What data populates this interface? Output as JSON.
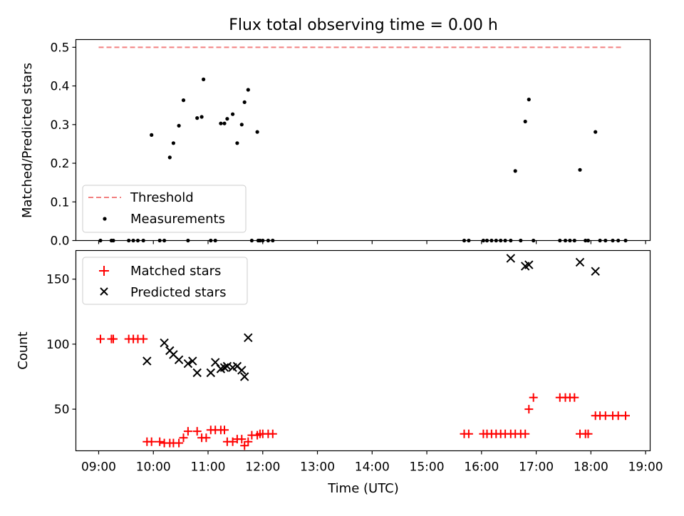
{
  "chart_data": [
    {
      "type": "scatter",
      "title": "Flux total observing time = 0.00 h",
      "xlabel": "",
      "ylabel": "Matched/Predicted stars",
      "xlim": [
        "08:35",
        "19:05"
      ],
      "ylim": [
        0,
        0.52
      ],
      "yticks": [
        "0.0",
        "0.1",
        "0.2",
        "0.3",
        "0.4",
        "0.5"
      ],
      "ytick_values": [
        0,
        0.1,
        0.2,
        0.3,
        0.4,
        0.5
      ],
      "legend": {
        "placement": "lower-left",
        "entries": [
          "Threshold",
          "Measurements"
        ]
      },
      "series": [
        {
          "name": "Threshold",
          "type": "line",
          "style": "dashed",
          "color": "#f28080",
          "x": [
            "09:00",
            "18:36"
          ],
          "y": [
            0.5,
            0.5
          ]
        },
        {
          "name": "Measurements",
          "type": "scatter",
          "color": "#000000",
          "x": [
            "09:02",
            "09:14",
            "09:16",
            "09:33",
            "09:38",
            "09:43",
            "09:49",
            "09:58",
            "10:07",
            "10:12",
            "10:18",
            "10:22",
            "10:28",
            "10:33",
            "10:38",
            "10:48",
            "10:53",
            "10:55",
            "11:03",
            "11:08",
            "11:14",
            "11:18",
            "11:21",
            "11:27",
            "11:32",
            "11:37",
            "11:40",
            "11:44",
            "11:48",
            "11:54",
            "11:55",
            "11:57",
            "12:00",
            "12:06",
            "12:11",
            "15:41",
            "15:46",
            "16:02",
            "16:06",
            "16:11",
            "16:16",
            "16:21",
            "16:26",
            "16:32",
            "16:37",
            "16:43",
            "16:48",
            "16:52",
            "16:57",
            "17:26",
            "17:32",
            "17:37",
            "17:42",
            "17:48",
            "17:54",
            "17:57",
            "18:05",
            "18:10",
            "18:16",
            "18:24",
            "18:30",
            "18:38"
          ],
          "y": [
            0,
            0,
            0,
            0,
            0,
            0,
            0,
            0.273,
            0,
            0,
            0.215,
            0.252,
            0.297,
            0.363,
            0,
            0.317,
            0.32,
            0.417,
            0,
            0,
            0.303,
            0.303,
            0.315,
            0.327,
            0.252,
            0.3,
            0.358,
            0.39,
            0,
            0.281,
            0,
            0,
            0,
            0,
            0,
            0,
            0,
            0,
            0,
            0,
            0,
            0,
            0,
            0,
            0.18,
            0,
            0.308,
            0.365,
            0,
            0,
            0,
            0,
            0,
            0.183,
            0,
            0,
            0.281,
            0,
            0,
            0,
            0,
            0
          ]
        }
      ]
    },
    {
      "type": "scatter",
      "title": "",
      "xlabel": "Time (UTC)",
      "ylabel": "Count",
      "xlim": [
        "08:35",
        "19:05"
      ],
      "ylim": [
        18,
        172
      ],
      "yticks": [
        "50",
        "100",
        "150"
      ],
      "ytick_values": [
        50,
        100,
        150
      ],
      "xticks": [
        "09:00",
        "10:00",
        "11:00",
        "12:00",
        "13:00",
        "14:00",
        "15:00",
        "16:00",
        "17:00",
        "18:00",
        "19:00"
      ],
      "legend": {
        "placement": "upper-left",
        "entries": [
          "Matched stars",
          "Predicted stars"
        ]
      },
      "series": [
        {
          "name": "Matched stars",
          "marker": "+",
          "color": "#ff0000",
          "x": [
            "09:02",
            "09:14",
            "09:16",
            "09:33",
            "09:38",
            "09:43",
            "09:49",
            "09:53",
            "09:58",
            "10:07",
            "10:12",
            "10:18",
            "10:22",
            "10:28",
            "10:33",
            "10:38",
            "10:48",
            "10:53",
            "10:58",
            "11:03",
            "11:08",
            "11:14",
            "11:18",
            "11:21",
            "11:27",
            "11:32",
            "11:37",
            "11:40",
            "11:44",
            "11:48",
            "11:54",
            "11:57",
            "12:00",
            "12:06",
            "12:11",
            "15:41",
            "15:46",
            "16:02",
            "16:06",
            "16:11",
            "16:16",
            "16:21",
            "16:26",
            "16:32",
            "16:37",
            "16:43",
            "16:48",
            "16:52",
            "16:57",
            "17:26",
            "17:32",
            "17:37",
            "17:42",
            "17:48",
            "17:54",
            "17:57",
            "18:05",
            "18:10",
            "18:16",
            "18:24",
            "18:30",
            "18:38"
          ],
          "y": [
            104,
            104,
            104,
            104,
            104,
            104,
            104,
            25,
            25,
            25,
            24,
            24,
            24,
            24,
            28,
            33,
            33,
            28,
            28,
            34,
            34,
            34,
            34,
            25,
            25,
            27,
            27,
            22,
            25,
            30,
            30,
            31,
            31,
            31,
            31,
            31,
            31,
            31,
            31,
            31,
            31,
            31,
            31,
            31,
            31,
            31,
            31,
            50,
            59,
            59,
            59,
            59,
            59,
            31,
            31,
            31,
            45,
            45,
            45,
            45,
            45,
            45
          ]
        },
        {
          "name": "Predicted stars",
          "marker": "x",
          "color": "#000000",
          "x": [
            "09:53",
            "10:12",
            "10:18",
            "10:22",
            "10:28",
            "10:38",
            "10:43",
            "10:48",
            "11:03",
            "11:08",
            "11:14",
            "11:18",
            "11:21",
            "11:27",
            "11:32",
            "11:37",
            "11:40",
            "11:44",
            "16:32",
            "16:48",
            "16:52",
            "17:48",
            "18:05"
          ],
          "y": [
            87,
            101,
            95,
            92,
            88,
            85,
            87,
            78,
            78,
            86,
            81,
            82,
            83,
            82,
            83,
            80,
            75,
            105,
            166,
            160,
            161,
            163,
            156
          ]
        }
      ]
    }
  ]
}
